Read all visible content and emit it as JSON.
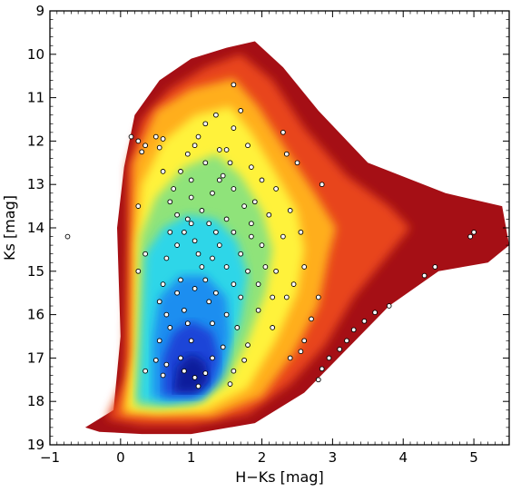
{
  "chart_data": {
    "type": "scatter",
    "title": "",
    "xlabel": "H−Ks [mag]",
    "ylabel": "Ks [mag]",
    "xlim": [
      -1,
      5.5
    ],
    "ylim": [
      19,
      9
    ],
    "y_inverted": true,
    "x_ticks": [
      "−1",
      "0",
      "1",
      "2",
      "3",
      "4",
      "5"
    ],
    "x_tick_values": [
      -1,
      0,
      1,
      2,
      3,
      4,
      5
    ],
    "y_ticks": [
      "9",
      "10",
      "11",
      "12",
      "13",
      "14",
      "15",
      "16",
      "17",
      "18",
      "19"
    ],
    "y_tick_values": [
      9,
      10,
      11,
      12,
      13,
      14,
      15,
      16,
      17,
      18,
      19
    ],
    "grid": false,
    "legend": "none",
    "density_colormap": [
      "#7f0000",
      "#d7191c",
      "#ff7f00",
      "#ffd700",
      "#ffff33",
      "#a6e87a",
      "#33e6e6",
      "#1e90ff",
      "#1f3fd6",
      "#001a99"
    ],
    "density_layers": [
      {
        "level": "sparse",
        "color": "#a50f15",
        "outline": [
          [
            -0.5,
            18.6
          ],
          [
            -0.1,
            18.2
          ],
          [
            0.0,
            16.5
          ],
          [
            -0.05,
            14.0
          ],
          [
            0.05,
            12.6
          ],
          [
            0.2,
            11.4
          ],
          [
            0.55,
            10.6
          ],
          [
            1.0,
            10.1
          ],
          [
            1.5,
            9.85
          ],
          [
            1.9,
            9.7
          ],
          [
            2.3,
            10.3
          ],
          [
            2.8,
            11.3
          ],
          [
            3.5,
            12.5
          ],
          [
            4.6,
            13.2
          ],
          [
            5.4,
            13.5
          ],
          [
            5.5,
            14.4
          ],
          [
            5.2,
            14.8
          ],
          [
            4.5,
            15.0
          ],
          [
            3.8,
            15.8
          ],
          [
            3.2,
            16.8
          ],
          [
            2.6,
            17.8
          ],
          [
            1.9,
            18.5
          ],
          [
            1.0,
            18.75
          ],
          [
            0.3,
            18.75
          ],
          [
            -0.3,
            18.7
          ]
        ]
      },
      {
        "level": "low",
        "color": "#e8451a",
        "outline": [
          [
            -0.2,
            18.4
          ],
          [
            0.05,
            17.5
          ],
          [
            0.1,
            14.5
          ],
          [
            0.1,
            12.6
          ],
          [
            0.3,
            11.5
          ],
          [
            0.7,
            10.8
          ],
          [
            1.2,
            10.3
          ],
          [
            1.7,
            10.0
          ],
          [
            2.15,
            10.6
          ],
          [
            2.6,
            11.7
          ],
          [
            3.2,
            12.8
          ],
          [
            3.8,
            13.5
          ],
          [
            4.1,
            14.0
          ],
          [
            3.8,
            14.6
          ],
          [
            3.3,
            15.6
          ],
          [
            2.9,
            16.7
          ],
          [
            2.4,
            17.6
          ],
          [
            1.8,
            18.3
          ],
          [
            1.0,
            18.55
          ],
          [
            0.3,
            18.55
          ]
        ]
      },
      {
        "level": "medium",
        "color": "#ffae1a",
        "outline": [
          [
            0.0,
            18.3
          ],
          [
            0.15,
            17.0
          ],
          [
            0.15,
            14.5
          ],
          [
            0.18,
            12.5
          ],
          [
            0.5,
            11.3
          ],
          [
            1.0,
            10.8
          ],
          [
            1.6,
            10.55
          ],
          [
            1.95,
            11.2
          ],
          [
            2.3,
            12.1
          ],
          [
            2.75,
            13.2
          ],
          [
            3.05,
            14.0
          ],
          [
            2.95,
            14.6
          ],
          [
            2.8,
            15.8
          ],
          [
            2.45,
            16.9
          ],
          [
            2.0,
            17.9
          ],
          [
            1.3,
            18.35
          ],
          [
            0.5,
            18.35
          ]
        ]
      },
      {
        "level": "moderate",
        "color": "#fff23a",
        "outline": [
          [
            0.1,
            18.2
          ],
          [
            0.2,
            16.8
          ],
          [
            0.22,
            14.4
          ],
          [
            0.3,
            13.0
          ],
          [
            0.6,
            12.0
          ],
          [
            1.05,
            11.4
          ],
          [
            1.55,
            11.2
          ],
          [
            1.85,
            11.8
          ],
          [
            2.15,
            12.6
          ],
          [
            2.5,
            13.6
          ],
          [
            2.6,
            14.5
          ],
          [
            2.5,
            15.5
          ],
          [
            2.2,
            16.6
          ],
          [
            1.8,
            17.7
          ],
          [
            1.2,
            18.2
          ],
          [
            0.5,
            18.25
          ]
        ]
      },
      {
        "level": "high",
        "color": "#8fe37a",
        "outline": [
          [
            0.2,
            18.1
          ],
          [
            0.25,
            16.5
          ],
          [
            0.28,
            14.2
          ],
          [
            0.5,
            13.3
          ],
          [
            0.9,
            12.6
          ],
          [
            1.35,
            12.3
          ],
          [
            1.7,
            12.8
          ],
          [
            2.0,
            13.6
          ],
          [
            2.15,
            14.5
          ],
          [
            2.05,
            15.5
          ],
          [
            1.8,
            16.6
          ],
          [
            1.5,
            17.6
          ],
          [
            1.0,
            18.1
          ],
          [
            0.5,
            18.15
          ]
        ]
      },
      {
        "level": "very-high",
        "color": "#2ed6e8",
        "outline": [
          [
            0.25,
            18.0
          ],
          [
            0.3,
            16.2
          ],
          [
            0.35,
            14.6
          ],
          [
            0.6,
            14.0
          ],
          [
            0.95,
            13.7
          ],
          [
            1.35,
            13.8
          ],
          [
            1.65,
            14.3
          ],
          [
            1.8,
            15.1
          ],
          [
            1.7,
            16.1
          ],
          [
            1.5,
            17.1
          ],
          [
            1.15,
            17.9
          ],
          [
            0.6,
            18.05
          ]
        ]
      },
      {
        "level": "dense",
        "color": "#1d8ef0",
        "outline": [
          [
            0.45,
            17.9
          ],
          [
            0.45,
            16.6
          ],
          [
            0.55,
            15.6
          ],
          [
            0.85,
            15.1
          ],
          [
            1.2,
            15.1
          ],
          [
            1.5,
            15.6
          ],
          [
            1.55,
            16.5
          ],
          [
            1.45,
            17.4
          ],
          [
            1.15,
            17.95
          ],
          [
            0.7,
            18.0
          ]
        ]
      },
      {
        "level": "very-dense",
        "color": "#1f45d8",
        "outline": [
          [
            0.6,
            17.85
          ],
          [
            0.6,
            17.0
          ],
          [
            0.75,
            16.4
          ],
          [
            1.0,
            16.15
          ],
          [
            1.3,
            16.4
          ],
          [
            1.4,
            17.0
          ],
          [
            1.3,
            17.6
          ],
          [
            1.0,
            17.9
          ]
        ]
      },
      {
        "level": "peak",
        "color": "#0a1c9c",
        "outline": [
          [
            0.75,
            17.8
          ],
          [
            0.8,
            17.2
          ],
          [
            1.0,
            16.9
          ],
          [
            1.2,
            17.1
          ],
          [
            1.25,
            17.5
          ],
          [
            1.1,
            17.8
          ]
        ]
      }
    ],
    "marker_points": [
      [
        0.15,
        11.9
      ],
      [
        0.25,
        12.0
      ],
      [
        0.35,
        12.1
      ],
      [
        0.5,
        11.9
      ],
      [
        0.55,
        12.15
      ],
      [
        0.6,
        11.95
      ],
      [
        0.3,
        12.25
      ],
      [
        -0.75,
        14.2
      ],
      [
        0.25,
        13.5
      ],
      [
        0.35,
        14.6
      ],
      [
        0.25,
        15.0
      ],
      [
        0.6,
        12.7
      ],
      [
        0.7,
        13.4
      ],
      [
        0.85,
        12.7
      ],
      [
        0.95,
        13.8
      ],
      [
        0.8,
        14.4
      ],
      [
        1.0,
        12.9
      ],
      [
        1.05,
        12.1
      ],
      [
        1.1,
        11.9
      ],
      [
        1.2,
        11.6
      ],
      [
        1.35,
        11.4
      ],
      [
        1.5,
        12.2
      ],
      [
        1.6,
        11.7
      ],
      [
        1.7,
        11.3
      ],
      [
        1.6,
        10.7
      ],
      [
        1.45,
        12.8
      ],
      [
        1.85,
        12.6
      ],
      [
        2.0,
        12.9
      ],
      [
        2.2,
        13.1
      ],
      [
        2.1,
        13.7
      ],
      [
        2.3,
        14.2
      ],
      [
        2.55,
        14.1
      ],
      [
        2.4,
        13.6
      ],
      [
        1.9,
        13.4
      ],
      [
        2.35,
        12.3
      ],
      [
        2.5,
        12.5
      ],
      [
        2.3,
        11.8
      ],
      [
        2.6,
        14.9
      ],
      [
        2.45,
        15.3
      ],
      [
        2.35,
        15.6
      ],
      [
        2.8,
        15.6
      ],
      [
        2.7,
        16.1
      ],
      [
        2.6,
        16.6
      ],
      [
        2.55,
        16.85
      ],
      [
        2.4,
        17.0
      ],
      [
        2.15,
        16.3
      ],
      [
        1.95,
        15.9
      ],
      [
        0.65,
        14.7
      ],
      [
        0.6,
        15.3
      ],
      [
        0.55,
        15.7
      ],
      [
        0.65,
        16.0
      ],
      [
        0.7,
        16.3
      ],
      [
        0.55,
        16.6
      ],
      [
        0.5,
        17.05
      ],
      [
        0.35,
        17.3
      ],
      [
        0.6,
        17.4
      ],
      [
        0.65,
        17.15
      ],
      [
        0.85,
        15.2
      ],
      [
        0.8,
        15.5
      ],
      [
        0.9,
        15.9
      ],
      [
        0.95,
        16.2
      ],
      [
        1.0,
        16.6
      ],
      [
        0.85,
        17.0
      ],
      [
        0.9,
        17.3
      ],
      [
        1.05,
        17.45
      ],
      [
        1.1,
        17.65
      ],
      [
        1.2,
        17.35
      ],
      [
        1.3,
        17.0
      ],
      [
        1.45,
        16.75
      ],
      [
        1.65,
        16.3
      ],
      [
        1.8,
        16.7
      ],
      [
        1.75,
        17.05
      ],
      [
        1.6,
        17.3
      ],
      [
        1.55,
        17.6
      ],
      [
        1.3,
        16.2
      ],
      [
        1.5,
        16.0
      ],
      [
        1.25,
        15.7
      ],
      [
        1.05,
        14.3
      ],
      [
        1.1,
        14.6
      ],
      [
        1.15,
        14.9
      ],
      [
        1.2,
        15.2
      ],
      [
        1.05,
        15.4
      ],
      [
        1.3,
        14.7
      ],
      [
        1.4,
        14.4
      ],
      [
        1.5,
        14.9
      ],
      [
        1.6,
        15.3
      ],
      [
        1.35,
        15.5
      ],
      [
        0.9,
        14.1
      ],
      [
        1.0,
        13.9
      ],
      [
        1.15,
        13.6
      ],
      [
        1.25,
        13.9
      ],
      [
        1.35,
        14.1
      ],
      [
        1.5,
        13.8
      ],
      [
        1.6,
        14.1
      ],
      [
        1.7,
        14.6
      ],
      [
        1.8,
        15.0
      ],
      [
        1.7,
        15.6
      ],
      [
        1.85,
        14.2
      ],
      [
        2.0,
        14.4
      ],
      [
        2.05,
        14.9
      ],
      [
        1.95,
        15.3
      ],
      [
        2.15,
        15.6
      ],
      [
        2.2,
        15.0
      ],
      [
        0.8,
        13.7
      ],
      [
        0.7,
        14.1
      ],
      [
        0.75,
        13.1
      ],
      [
        1.3,
        13.2
      ],
      [
        1.4,
        12.9
      ],
      [
        1.6,
        13.1
      ],
      [
        1.75,
        13.5
      ],
      [
        1.85,
        13.9
      ],
      [
        1.2,
        12.5
      ],
      [
        1.4,
        12.2
      ],
      [
        1.55,
        12.5
      ],
      [
        1.0,
        13.3
      ],
      [
        0.95,
        12.3
      ],
      [
        1.8,
        12.1
      ],
      [
        3.8,
        15.8
      ],
      [
        3.6,
        15.95
      ],
      [
        3.45,
        16.15
      ],
      [
        3.3,
        16.35
      ],
      [
        3.2,
        16.6
      ],
      [
        3.1,
        16.8
      ],
      [
        2.95,
        17.0
      ],
      [
        2.85,
        17.25
      ],
      [
        2.8,
        17.5
      ],
      [
        4.3,
        15.1
      ],
      [
        4.45,
        14.9
      ],
      [
        4.95,
        14.2
      ],
      [
        5.0,
        14.1
      ],
      [
        2.85,
        13.0
      ]
    ]
  }
}
